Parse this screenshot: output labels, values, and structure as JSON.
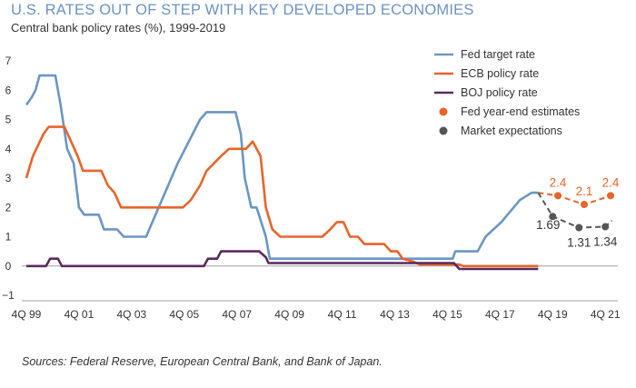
{
  "header": {
    "title": "U.S. RATES OUT OF STEP WITH KEY DEVELOPED ECONOMIES",
    "subtitle": "Central bank policy rates (%), 1999-2019"
  },
  "source": "Sources: Federal Reserve, European Central Bank, and Bank of Japan.",
  "chart_data": {
    "type": "line",
    "title": "U.S. RATES OUT OF STEP WITH KEY DEVELOPED ECONOMIES",
    "subtitle": "Central bank policy rates (%), 1999-2019",
    "xlabel": "",
    "ylabel": "",
    "xlim": [
      1999.75,
      2021.95
    ],
    "ylim": [
      -1,
      7
    ],
    "grid": false,
    "legend_position": "top-right",
    "x_ticks": [
      {
        "x": 1999.75,
        "label": "4Q 99"
      },
      {
        "x": 2001.75,
        "label": "4Q 01"
      },
      {
        "x": 2003.75,
        "label": "4Q 03"
      },
      {
        "x": 2005.75,
        "label": "4Q 05"
      },
      {
        "x": 2007.75,
        "label": "4Q 07"
      },
      {
        "x": 2009.75,
        "label": "4Q 09"
      },
      {
        "x": 2011.75,
        "label": "4Q 11"
      },
      {
        "x": 2013.75,
        "label": "4Q 13"
      },
      {
        "x": 2015.75,
        "label": "4Q 15"
      },
      {
        "x": 2017.75,
        "label": "4Q 17"
      },
      {
        "x": 2019.75,
        "label": "4Q 19"
      },
      {
        "x": 2021.75,
        "label": "4Q 21"
      }
    ],
    "y_ticks": [
      -1,
      0,
      1,
      2,
      3,
      4,
      5,
      6,
      7
    ],
    "y_tick_labels": [
      "−1",
      "0",
      "1",
      "2",
      "3",
      "4",
      "5",
      "6",
      "7"
    ],
    "colors": {
      "fed": "#6a96c4",
      "ecb": "#e8642a",
      "boj": "#5b2a5e",
      "market": "#555555"
    },
    "series": [
      {
        "name": "Fed target rate",
        "kind": "line",
        "color": "#6a96c4",
        "points": [
          [
            1999.75,
            5.5
          ],
          [
            1999.95,
            5.75
          ],
          [
            2000.1,
            6.0
          ],
          [
            2000.25,
            6.5
          ],
          [
            2000.85,
            6.5
          ],
          [
            2001.05,
            5.5
          ],
          [
            2001.3,
            4.0
          ],
          [
            2001.55,
            3.5
          ],
          [
            2001.75,
            2.0
          ],
          [
            2001.95,
            1.75
          ],
          [
            2002.5,
            1.75
          ],
          [
            2002.7,
            1.25
          ],
          [
            2003.2,
            1.25
          ],
          [
            2003.45,
            1.0
          ],
          [
            2004.3,
            1.0
          ],
          [
            2005.5,
            3.5
          ],
          [
            2006.35,
            5.0
          ],
          [
            2006.6,
            5.25
          ],
          [
            2007.7,
            5.25
          ],
          [
            2007.9,
            4.5
          ],
          [
            2008.05,
            3.0
          ],
          [
            2008.3,
            2.0
          ],
          [
            2008.5,
            2.0
          ],
          [
            2008.85,
            1.0
          ],
          [
            2009.0,
            0.25
          ],
          [
            2015.95,
            0.25
          ],
          [
            2016.05,
            0.5
          ],
          [
            2016.9,
            0.5
          ],
          [
            2017.2,
            1.0
          ],
          [
            2017.5,
            1.25
          ],
          [
            2017.8,
            1.5
          ],
          [
            2018.5,
            2.25
          ],
          [
            2018.95,
            2.5
          ],
          [
            2019.2,
            2.5
          ]
        ]
      },
      {
        "name": "ECB policy rate",
        "kind": "line",
        "color": "#e8642a",
        "points": [
          [
            1999.75,
            3.0
          ],
          [
            2000.0,
            3.75
          ],
          [
            2000.4,
            4.5
          ],
          [
            2000.6,
            4.75
          ],
          [
            2001.2,
            4.75
          ],
          [
            2001.45,
            4.25
          ],
          [
            2001.7,
            3.75
          ],
          [
            2001.9,
            3.25
          ],
          [
            2002.6,
            3.25
          ],
          [
            2002.85,
            2.75
          ],
          [
            2003.1,
            2.5
          ],
          [
            2003.35,
            2.0
          ],
          [
            2005.7,
            2.0
          ],
          [
            2006.0,
            2.25
          ],
          [
            2006.35,
            2.75
          ],
          [
            2006.6,
            3.25
          ],
          [
            2007.15,
            3.75
          ],
          [
            2007.45,
            4.0
          ],
          [
            2008.1,
            4.0
          ],
          [
            2008.35,
            4.25
          ],
          [
            2008.65,
            3.75
          ],
          [
            2008.85,
            2.0
          ],
          [
            2009.1,
            1.25
          ],
          [
            2009.4,
            1.0
          ],
          [
            2011.0,
            1.0
          ],
          [
            2011.3,
            1.25
          ],
          [
            2011.55,
            1.5
          ],
          [
            2011.8,
            1.5
          ],
          [
            2012.05,
            1.0
          ],
          [
            2012.35,
            1.0
          ],
          [
            2012.6,
            0.75
          ],
          [
            2013.35,
            0.75
          ],
          [
            2013.6,
            0.5
          ],
          [
            2013.85,
            0.5
          ],
          [
            2014.05,
            0.25
          ],
          [
            2014.45,
            0.15
          ],
          [
            2014.7,
            0.05
          ],
          [
            2016.2,
            0.05
          ],
          [
            2016.35,
            0.0
          ],
          [
            2019.2,
            0.0
          ]
        ]
      },
      {
        "name": "BOJ policy rate",
        "kind": "line",
        "color": "#5b2a5e",
        "points": [
          [
            1999.75,
            0.0
          ],
          [
            2000.5,
            0.0
          ],
          [
            2000.65,
            0.25
          ],
          [
            2000.95,
            0.25
          ],
          [
            2001.1,
            0.0
          ],
          [
            2006.5,
            0.0
          ],
          [
            2006.65,
            0.25
          ],
          [
            2007.0,
            0.25
          ],
          [
            2007.15,
            0.5
          ],
          [
            2008.6,
            0.5
          ],
          [
            2008.85,
            0.3
          ],
          [
            2008.95,
            0.1
          ],
          [
            2016.0,
            0.1
          ],
          [
            2016.2,
            -0.1
          ],
          [
            2019.2,
            -0.1
          ]
        ]
      },
      {
        "name": "Fed year-end estimates",
        "kind": "dots",
        "color": "#e8642a",
        "points": [
          [
            2019.95,
            2.4
          ],
          [
            2020.95,
            2.1
          ],
          [
            2021.95,
            2.4
          ]
        ],
        "labels": [
          "2.4",
          "2.1",
          "2.4"
        ],
        "connector": [
          [
            2019.2,
            2.5
          ],
          [
            2019.95,
            2.4
          ],
          [
            2020.95,
            2.1
          ],
          [
            2021.95,
            2.4
          ]
        ]
      },
      {
        "name": "Market expectations",
        "kind": "dots",
        "color": "#555555",
        "points": [
          [
            2019.75,
            1.69
          ],
          [
            2020.75,
            1.31
          ],
          [
            2021.75,
            1.34
          ]
        ],
        "labels": [
          "1.69",
          "1.31",
          "1.34"
        ],
        "connector": [
          [
            2019.2,
            2.5
          ],
          [
            2019.75,
            1.69
          ],
          [
            2020.75,
            1.31
          ],
          [
            2021.75,
            1.34
          ],
          [
            2022.0,
            1.55
          ]
        ]
      }
    ]
  }
}
